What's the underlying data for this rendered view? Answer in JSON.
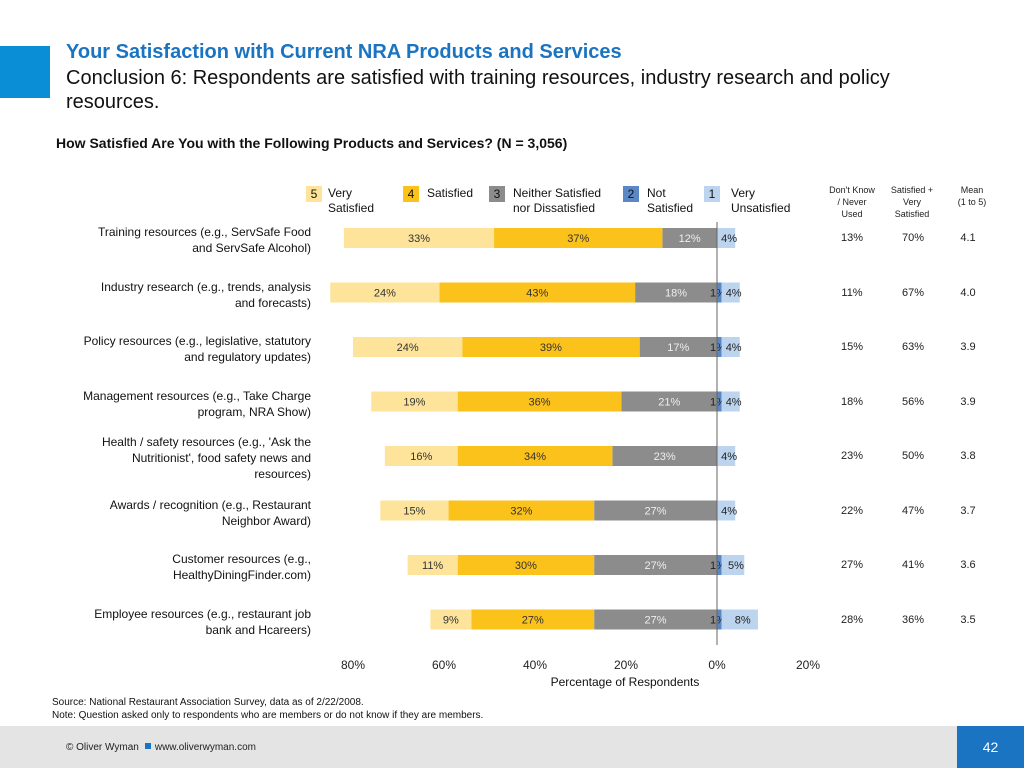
{
  "header": {
    "title": "Your Satisfaction with Current NRA Products and Services",
    "subtitle": "Conclusion 6: Respondents are satisfied with training resources, industry research and policy resources."
  },
  "legend": [
    {
      "num": "5",
      "label_line1": "Very",
      "label_line2": "Satisfied",
      "color": "#fde49a"
    },
    {
      "num": "4",
      "label_line1": "Satisfied",
      "label_line2": "",
      "color": "#fbc21b"
    },
    {
      "num": "3",
      "label_line1": "Neither Satisfied",
      "label_line2": "nor Dissatisfied",
      "color": "#8c8c8c"
    },
    {
      "num": "2",
      "label_line1": "Not",
      "label_line2": "Satisfied",
      "color": "#5b87c4"
    },
    {
      "num": "1",
      "label_line1": "Very",
      "label_line2": "Unsatisfied",
      "color": "#bcd4ee"
    }
  ],
  "columns": {
    "dont_know": [
      "Don't Know",
      "/ Never",
      "Used"
    ],
    "sat_plus": [
      "Satisfied +",
      "Very",
      "Satisfied"
    ],
    "mean": [
      "Mean",
      "(1 to 5)"
    ]
  },
  "rows": [
    {
      "label": [
        "Training resources (e.g., ServSafe Food",
        "and ServSafe Alcohol)"
      ],
      "dont_know": "13%",
      "sat_plus": "70%",
      "mean": "4.1"
    },
    {
      "label": [
        "Industry research (e.g., trends, analysis",
        "and forecasts)"
      ],
      "dont_know": "11%",
      "sat_plus": "67%",
      "mean": "4.0"
    },
    {
      "label": [
        "Policy resources (e.g., legislative, statutory",
        "and regulatory updates)"
      ],
      "dont_know": "15%",
      "sat_plus": "63%",
      "mean": "3.9"
    },
    {
      "label": [
        "Management resources (e.g., Take Charge",
        "program, NRA Show)"
      ],
      "dont_know": "18%",
      "sat_plus": "56%",
      "mean": "3.9"
    },
    {
      "label": [
        "Health / safety resources (e.g., 'Ask the",
        "Nutritionist', food safety news and",
        "resources)"
      ],
      "dont_know": "23%",
      "sat_plus": "50%",
      "mean": "3.8"
    },
    {
      "label": [
        "Awards / recognition (e.g., Restaurant",
        "Neighbor Award)"
      ],
      "dont_know": "22%",
      "sat_plus": "47%",
      "mean": "3.7"
    },
    {
      "label": [
        "Customer resources (e.g.,",
        "HealthyDiningFinder.com)"
      ],
      "dont_know": "27%",
      "sat_plus": "41%",
      "mean": "3.6"
    },
    {
      "label": [
        "Employee resources (e.g., restaurant job",
        "bank and Hcareers)"
      ],
      "dont_know": "28%",
      "sat_plus": "36%",
      "mean": "3.5"
    }
  ],
  "chart_data": {
    "type": "bar",
    "orientation": "horizontal-diverging",
    "title": "How Satisfied Are You with the Following Products and Services? (N = 3,056)",
    "xlabel": "Percentage of Respondents",
    "xlim": [
      -80,
      20
    ],
    "xticks": [
      "80%",
      "60%",
      "40%",
      "20%",
      "0%",
      "20%"
    ],
    "xtick_values": [
      -80,
      -60,
      -40,
      -20,
      0,
      20
    ],
    "categories": [
      "Training resources (e.g., ServSafe Food and ServSafe Alcohol)",
      "Industry research (e.g., trends, analysis and forecasts)",
      "Policy resources (e.g., legislative, statutory and regulatory updates)",
      "Management resources (e.g., Take Charge program, NRA Show)",
      "Health / safety resources (e.g., 'Ask the Nutritionist', food safety news and resources)",
      "Awards / recognition (e.g., Restaurant Neighbor Award)",
      "Customer resources (e.g., HealthyDiningFinder.com)",
      "Employee resources (e.g., restaurant job bank and Hcareers)"
    ],
    "series": [
      {
        "name": "Very Satisfied",
        "side": "left",
        "color": "#fde49a",
        "values": [
          33,
          24,
          24,
          19,
          16,
          15,
          11,
          9
        ],
        "labels": [
          "33%",
          "24%",
          "24%",
          "19%",
          "16%",
          "15%",
          "11%",
          "9%"
        ]
      },
      {
        "name": "Satisfied",
        "side": "left",
        "color": "#fbc21b",
        "values": [
          37,
          43,
          39,
          36,
          34,
          32,
          30,
          27
        ],
        "labels": [
          "37%",
          "43%",
          "39%",
          "36%",
          "34%",
          "32%",
          "30%",
          "27%"
        ]
      },
      {
        "name": "Neither Satisfied nor Dissatisfied",
        "side": "left",
        "color": "#8c8c8c",
        "values": [
          12,
          18,
          17,
          21,
          23,
          27,
          27,
          27
        ],
        "labels": [
          "12%",
          "18%",
          "17%",
          "21%",
          "23%",
          "27%",
          "27%",
          "27%"
        ]
      },
      {
        "name": "Not Satisfied",
        "side": "right",
        "color": "#5b87c4",
        "values": [
          0,
          1,
          1,
          1,
          0,
          0,
          1,
          1
        ],
        "labels": [
          "",
          "1%",
          "1%",
          "1%",
          "",
          "",
          "1%",
          "1%"
        ]
      },
      {
        "name": "Very Unsatisfied",
        "side": "right",
        "color": "#bcd4ee",
        "values": [
          4,
          4,
          4,
          4,
          4,
          4,
          5,
          8
        ],
        "labels": [
          "4%",
          "4%",
          "4%",
          "4%",
          "4%",
          "4%",
          "5%",
          "8%"
        ]
      }
    ],
    "grid": false
  },
  "source": {
    "line1": "Source: National Restaurant Association Survey, data as of 2/22/2008.",
    "line2": "Note: Question asked only to respondents who are members or do not know if they are members."
  },
  "footer": {
    "copyright": "© Oliver Wyman",
    "url": "www.oliverwyman.com",
    "page": "42"
  }
}
